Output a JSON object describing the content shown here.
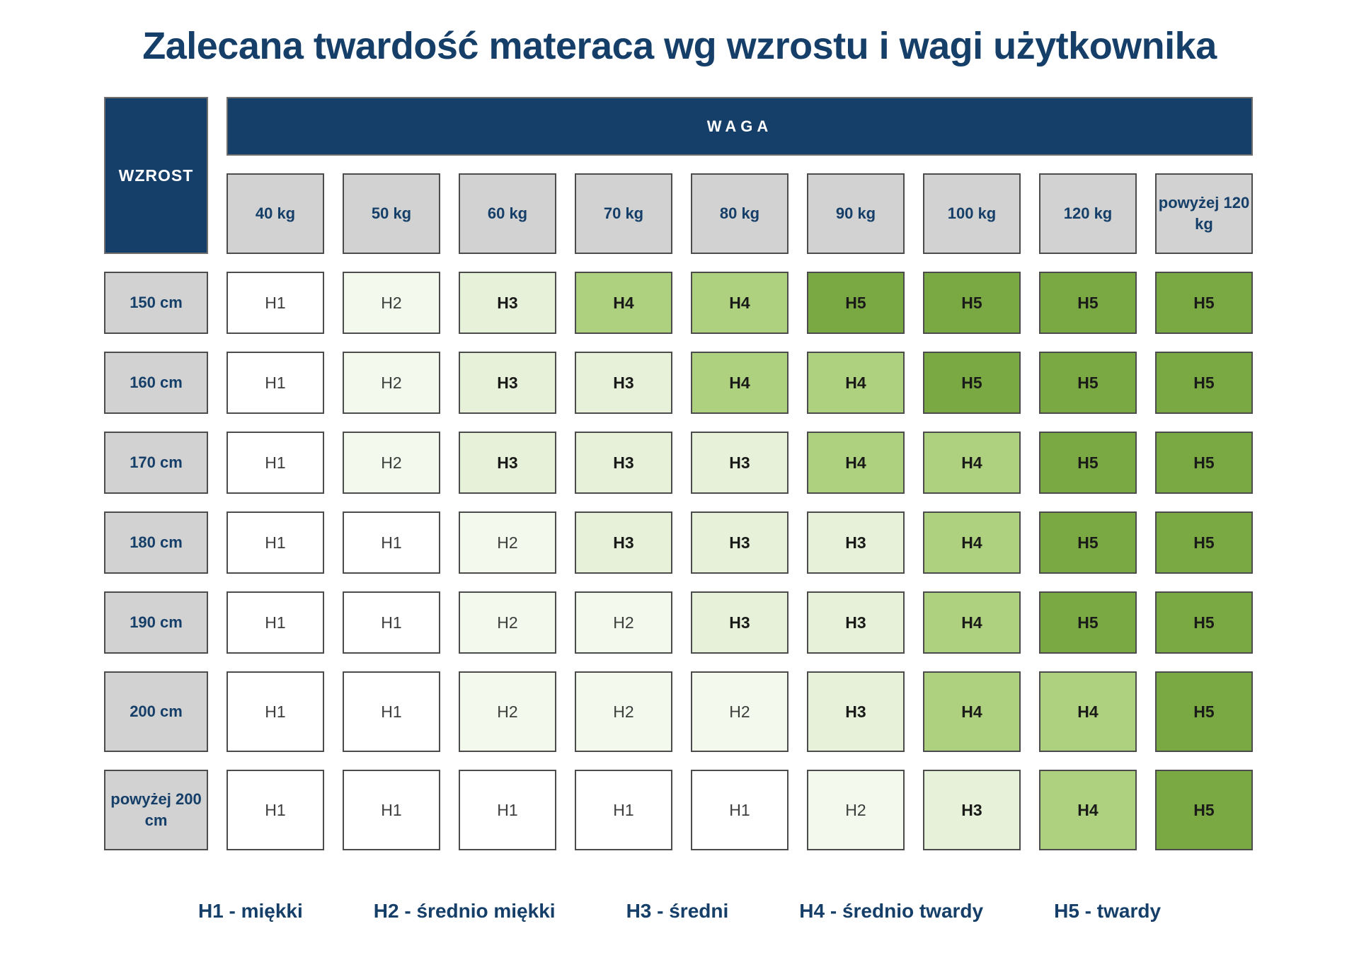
{
  "title": "Zalecana twardość materaca wg wzrostu i wagi użytkownika",
  "chart_data": {
    "type": "heatmap",
    "title": "Zalecana twardość materaca wg wzrostu i wagi użytkownika",
    "x_header": "WAGA",
    "y_header": "WZROST",
    "columns": [
      "40 kg",
      "50 kg",
      "60 kg",
      "70 kg",
      "80 kg",
      "90 kg",
      "100 kg",
      "120 kg",
      "powyżej 120 kg"
    ],
    "rows": [
      "150 cm",
      "160 cm",
      "170 cm",
      "180 cm",
      "190 cm",
      "200 cm",
      "powyżej 200 cm"
    ],
    "values": [
      [
        "H1",
        "H2",
        "H3",
        "H4",
        "H4",
        "H5",
        "H5",
        "H5",
        "H5"
      ],
      [
        "H1",
        "H2",
        "H3",
        "H3",
        "H4",
        "H4",
        "H5",
        "H5",
        "H5"
      ],
      [
        "H1",
        "H2",
        "H3",
        "H3",
        "H3",
        "H4",
        "H4",
        "H5",
        "H5"
      ],
      [
        "H1",
        "H1",
        "H2",
        "H3",
        "H3",
        "H3",
        "H4",
        "H5",
        "H5"
      ],
      [
        "H1",
        "H1",
        "H2",
        "H2",
        "H3",
        "H3",
        "H4",
        "H5",
        "H5"
      ],
      [
        "H1",
        "H1",
        "H2",
        "H2",
        "H2",
        "H3",
        "H4",
        "H4",
        "H5"
      ],
      [
        "H1",
        "H1",
        "H1",
        "H1",
        "H1",
        "H2",
        "H3",
        "H4",
        "H5"
      ]
    ],
    "legend": [
      "H1 - miękki",
      "H2 - średnio miękki",
      "H3 - średni",
      "H4 - średnio twardy",
      "H5 - twardy"
    ],
    "color_scale": {
      "H1": "#ffffff",
      "H2": "#f3f9ec",
      "H3": "#e7f1da",
      "H4": "#aed17f",
      "H5": "#7aa843"
    }
  },
  "colors": {
    "navy": "#153f68",
    "header_gray": "#d2d2d2",
    "cell_border": "#4c4c4c"
  }
}
